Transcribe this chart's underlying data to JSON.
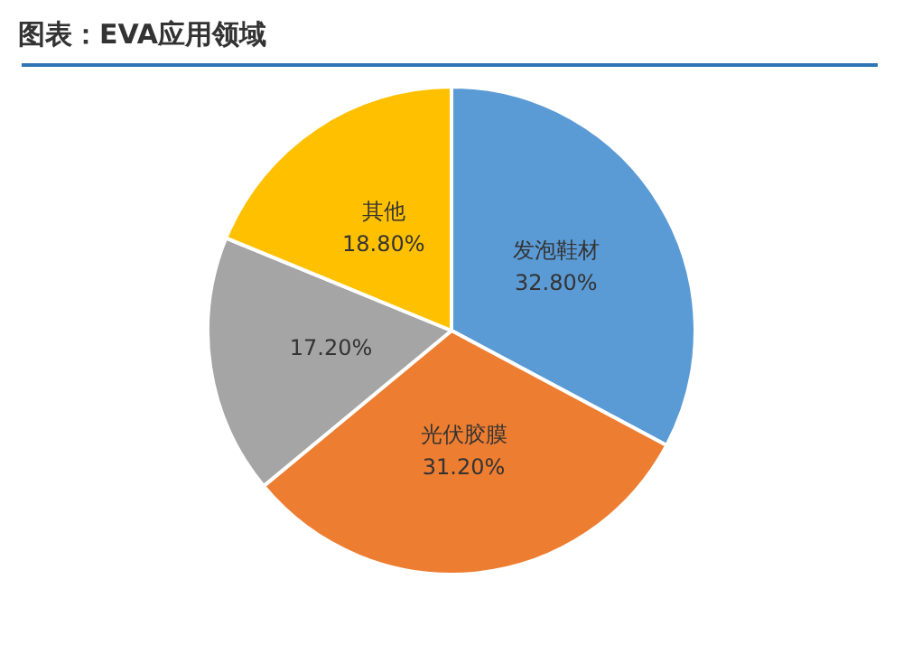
{
  "chart_data": {
    "type": "pie",
    "title": "图表：EVA应用领域",
    "categories": [
      "发泡鞋材",
      "光伏胶膜",
      null,
      "其他"
    ],
    "values": [
      32.8,
      31.2,
      17.2,
      18.8
    ],
    "value_labels": [
      "32.80%",
      "31.20%",
      "17.20%",
      "18.80%"
    ],
    "colors": [
      "#5b9bd5",
      "#ed7d31",
      "#a5a5a5",
      "#ffc000"
    ],
    "legend": false
  }
}
